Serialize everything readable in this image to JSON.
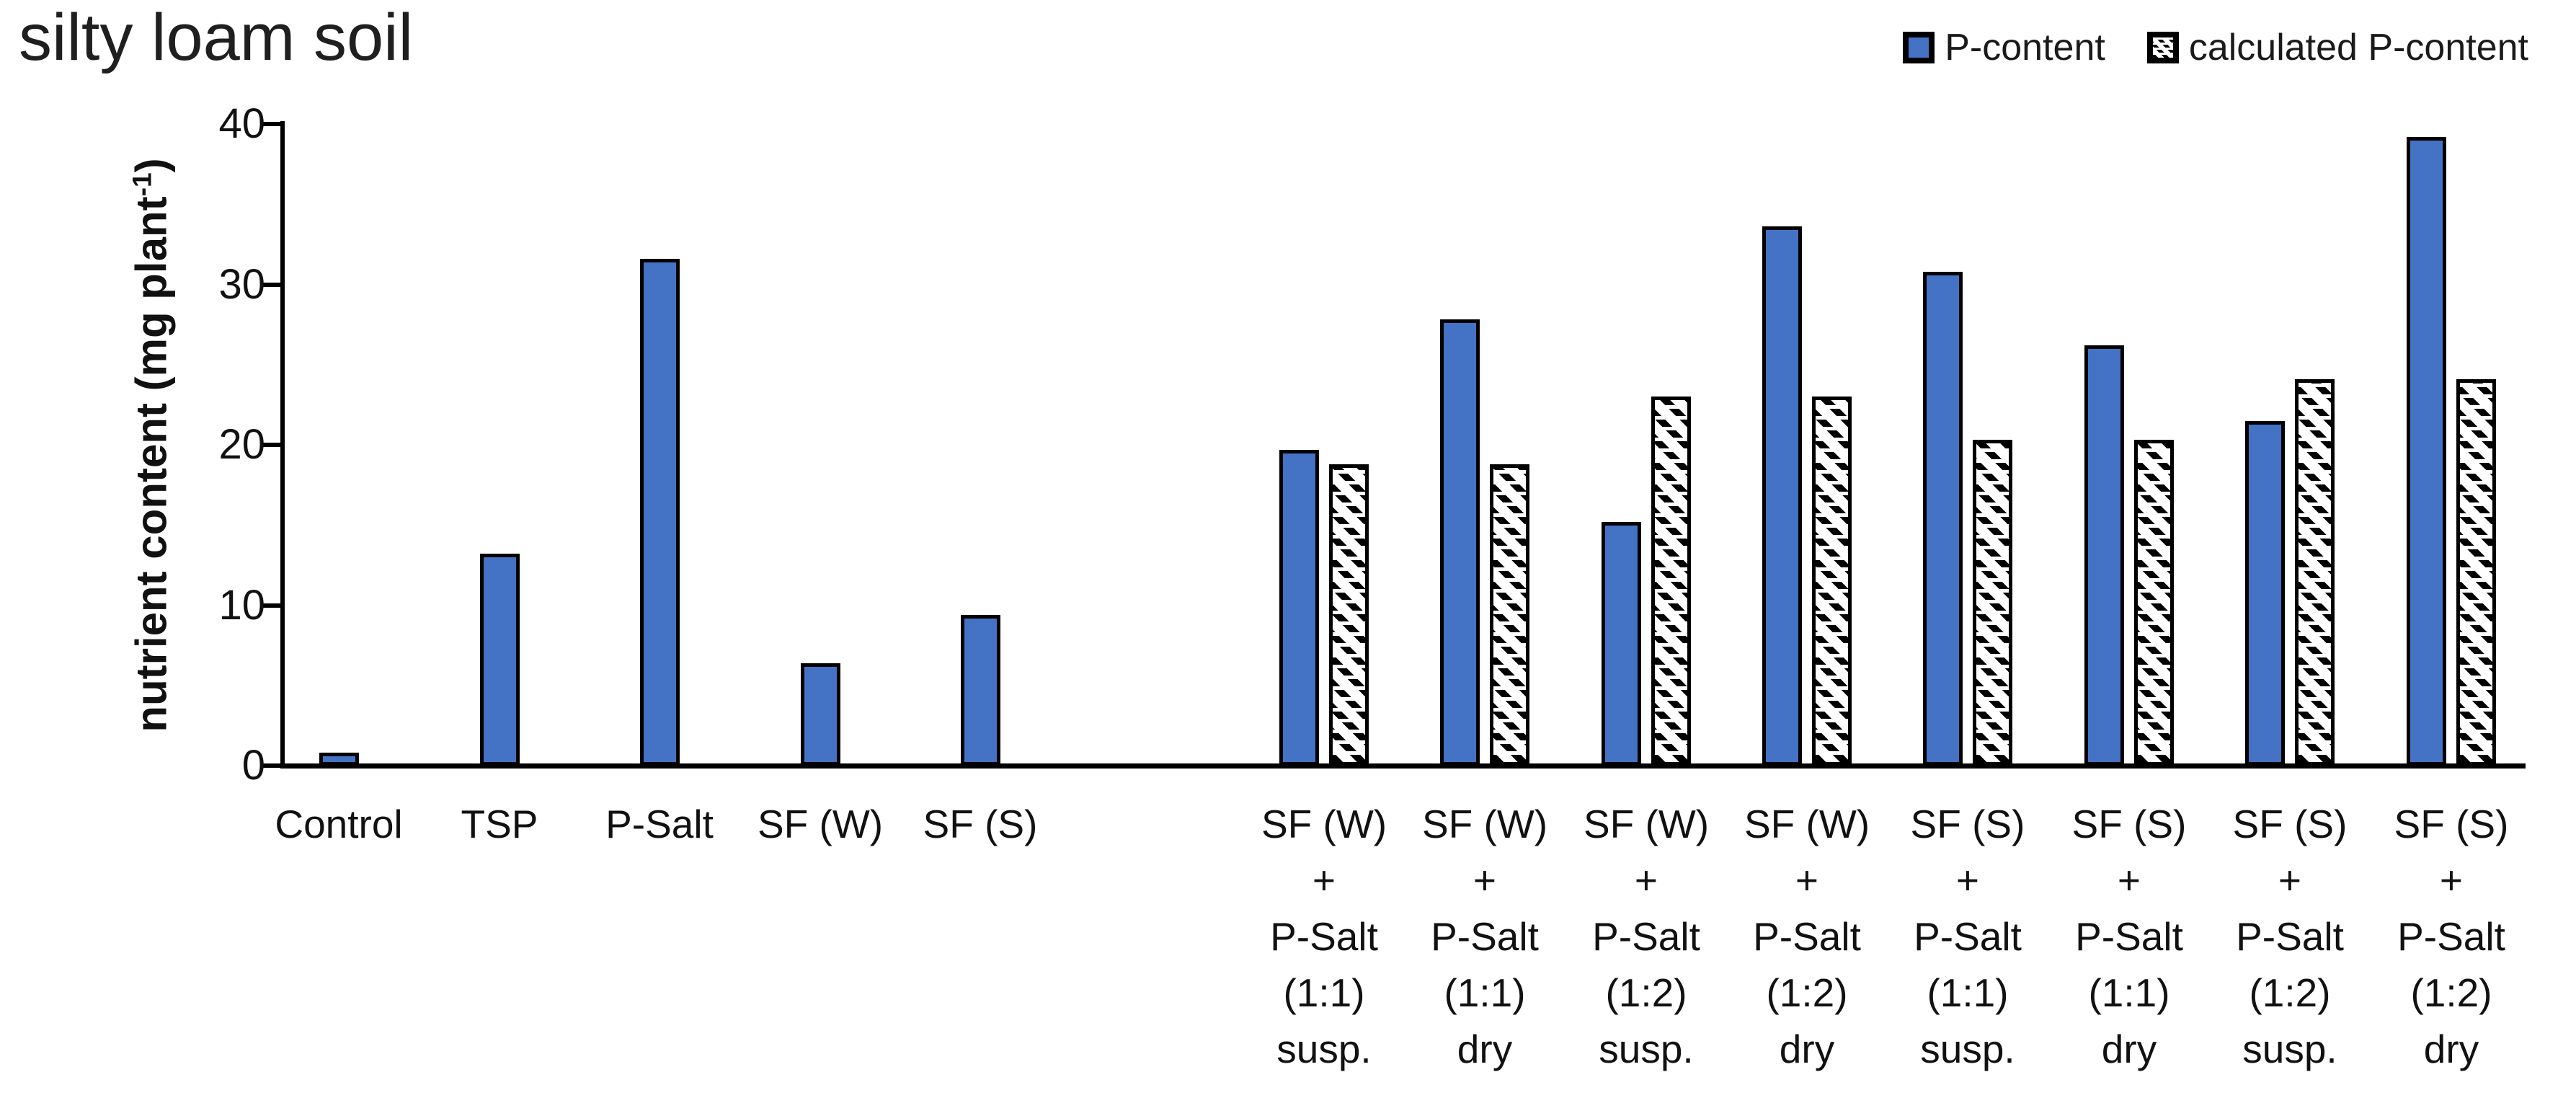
{
  "title": "silty loam soil",
  "legend": {
    "items": [
      {
        "label": "P-content",
        "swatch": "solid-blue-square"
      },
      {
        "label": "calculated P-content",
        "swatch": "hatched-square"
      }
    ]
  },
  "y_axis": {
    "label_prefix": "nutrient content (mg plant",
    "label_sup": "-1",
    "label_suffix": ")"
  },
  "colors": {
    "bar_blue": "#4472C4",
    "axis_black": "#000000",
    "hatch_fg": "#000000",
    "hatch_bg": "#ffffff"
  },
  "chart_data": {
    "type": "bar",
    "title": "silty loam soil",
    "ylabel": "nutrient content (mg plant-1)",
    "ylim": [
      0,
      40
    ],
    "yticks": [
      0,
      10,
      20,
      30,
      40
    ],
    "grid": false,
    "legend_position": "top-right",
    "categories": [
      [
        "Control"
      ],
      [
        "TSP"
      ],
      [
        "P-Salt"
      ],
      [
        "SF (W)"
      ],
      [
        "SF (S)"
      ],
      [
        "SF (W)",
        "+",
        "P-Salt",
        "(1:1)",
        "susp."
      ],
      [
        "SF (W)",
        "+",
        "P-Salt",
        "(1:1)",
        "dry"
      ],
      [
        "SF (W)",
        "+",
        "P-Salt",
        "(1:2)",
        "susp."
      ],
      [
        "SF (W)",
        "+",
        "P-Salt",
        "(1:2)",
        "dry"
      ],
      [
        "SF (S)",
        "+",
        "P-Salt",
        "(1:1)",
        "susp."
      ],
      [
        "SF (S)",
        "+",
        "P-Salt",
        "(1:1)",
        "dry"
      ],
      [
        "SF (S)",
        "+",
        "P-Salt",
        "(1:2)",
        "susp."
      ],
      [
        "SF (S)",
        "+",
        "P-Salt",
        "(1:2)",
        "dry"
      ]
    ],
    "series": [
      {
        "name": "P-content",
        "values": [
          0.8,
          13.2,
          31.6,
          6.4,
          9.4,
          19.7,
          27.8,
          15.2,
          33.6,
          30.8,
          26.2,
          21.5,
          39.2
        ]
      },
      {
        "name": "calculated P-content",
        "values": [
          null,
          null,
          null,
          null,
          null,
          18.8,
          18.8,
          23.0,
          23.0,
          20.3,
          20.3,
          24.1,
          24.1
        ]
      }
    ]
  }
}
